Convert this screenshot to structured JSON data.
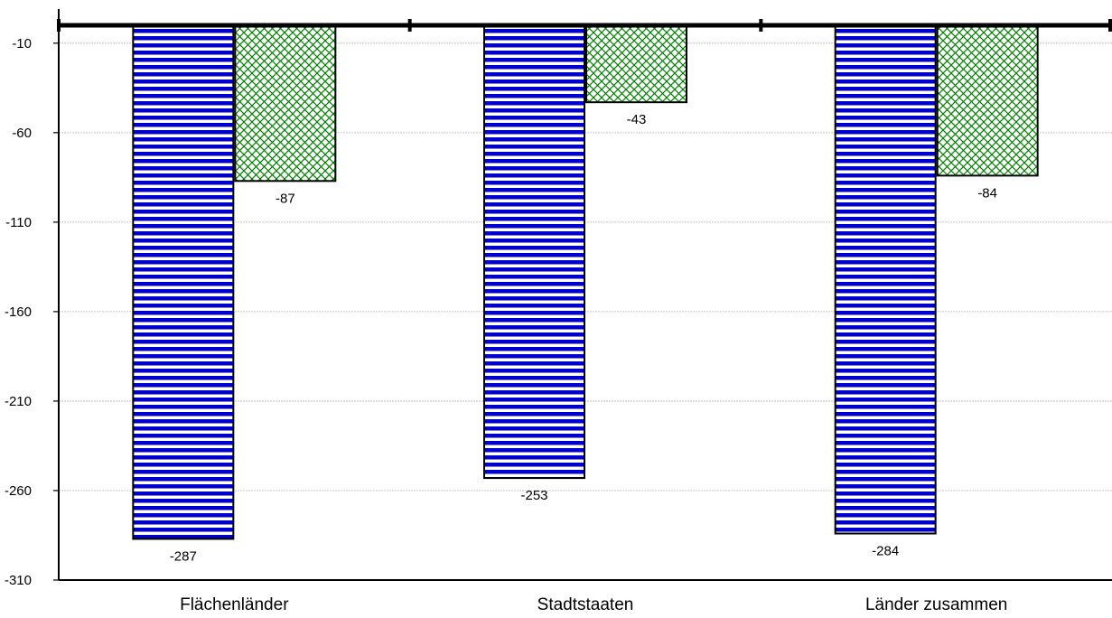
{
  "chart_data": {
    "type": "bar",
    "categories": [
      "Flächenländer",
      "Stadtstaaten",
      "Länder zusammen"
    ],
    "series": [
      {
        "values": [
          -287,
          -253,
          -284
        ],
        "pattern": "horizontal-stripes",
        "color": "#0000cc"
      },
      {
        "values": [
          -87,
          -43,
          -84
        ],
        "pattern": "crosshatch",
        "color": "#008000"
      }
    ],
    "data_labels": [
      [
        "-287",
        "-253",
        "-284"
      ],
      [
        "-87",
        "-43",
        "-84"
      ]
    ],
    "y_ticks": [
      -10,
      -60,
      -110,
      -160,
      -210,
      -260,
      -310
    ],
    "y_tick_labels": [
      "-10",
      "-60",
      "-110",
      "-160",
      "-210",
      "-260",
      "-310"
    ],
    "ylim": [
      -310,
      0
    ],
    "grid": true,
    "title": "",
    "xlabel": "",
    "ylabel": ""
  }
}
